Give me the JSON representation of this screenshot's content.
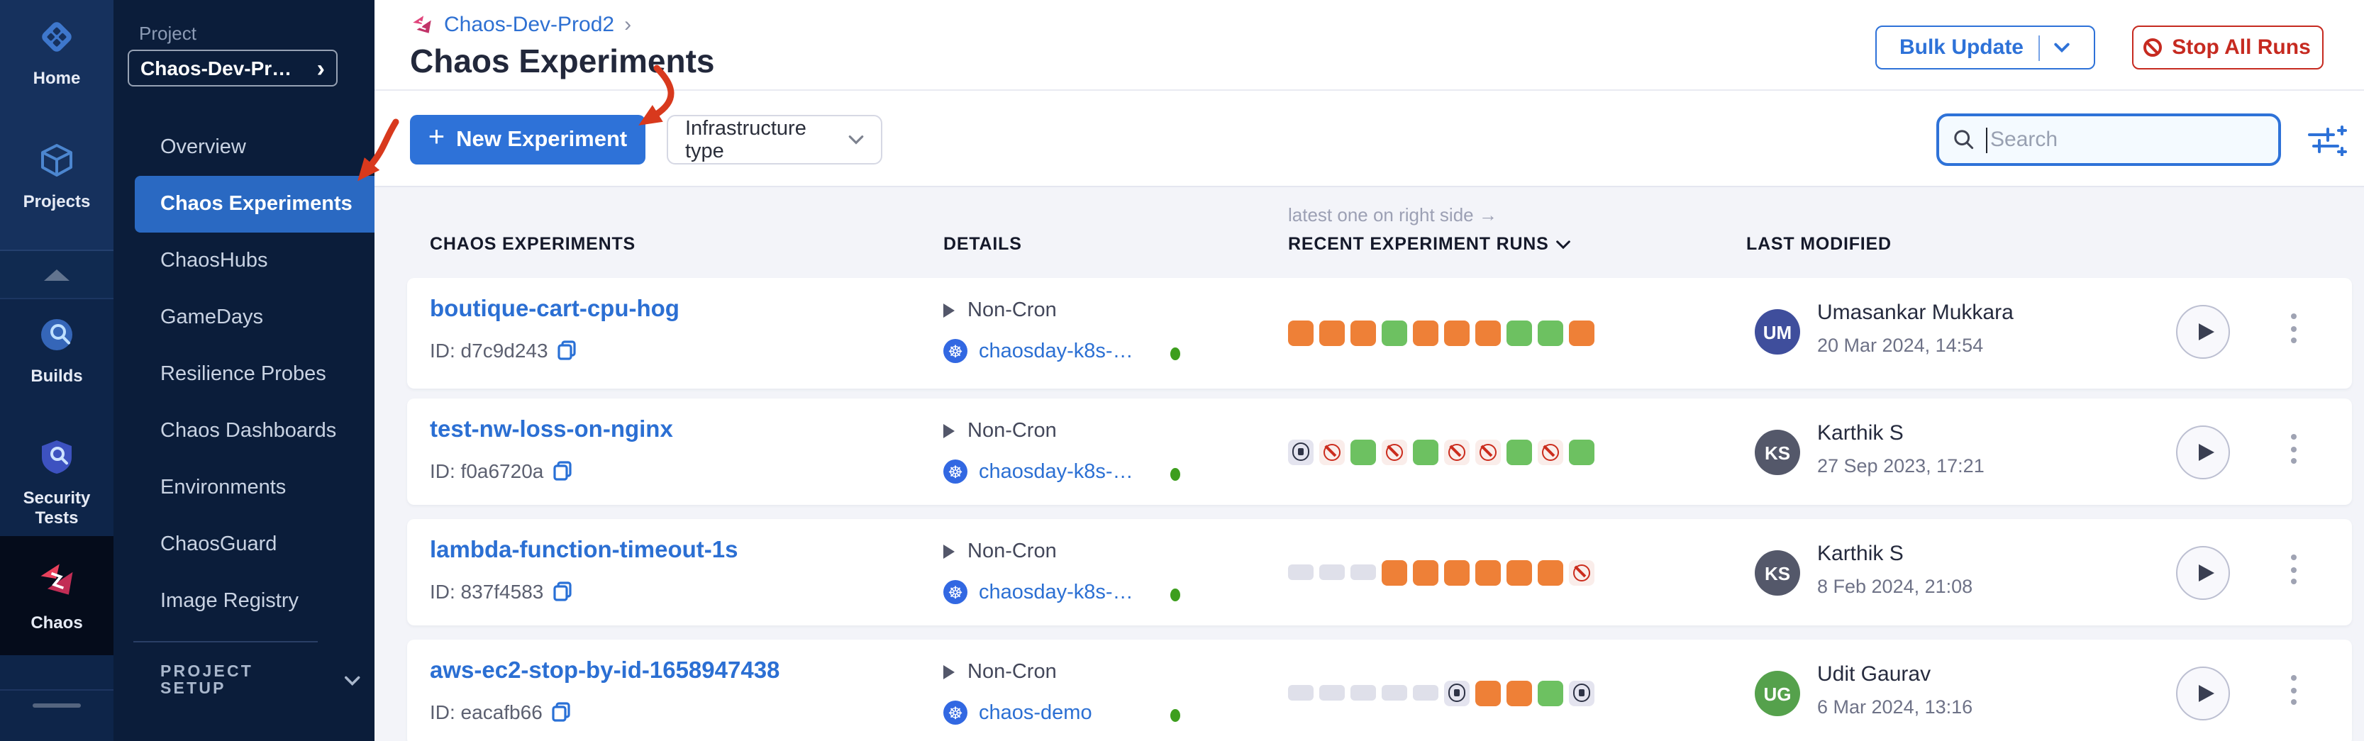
{
  "colors": {
    "primary_blue": "#2E72D8",
    "sidebar_active_blue": "#2A69C2",
    "link_blue": "#2B6FD3",
    "danger_red": "#C62A20",
    "annotation_red": "#D8391D",
    "run_orange": "#EE8037",
    "run_green": "#6DC161",
    "run_failed_icon": "#CB2C1D",
    "run_stopped_bg": "#E4E4EF",
    "run_empty": "#DFE0EA",
    "status_dot_green": "#3D9E1E"
  },
  "icons": {
    "plus": "+",
    "kubernetes": "☸",
    "breadcrumb_chevron": "›",
    "project_chevron": "›"
  },
  "rail": {
    "items": [
      {
        "label": "Home"
      },
      {
        "label": "Projects"
      },
      {
        "label": "Builds"
      },
      {
        "label": "Security Tests"
      },
      {
        "label": "Chaos",
        "active": true
      }
    ]
  },
  "sidebar": {
    "project_label": "Project",
    "project_name": "Chaos-Dev-Pr…",
    "items": [
      {
        "label": "Overview"
      },
      {
        "label": "Chaos Experiments",
        "active": true
      },
      {
        "label": "ChaosHubs"
      },
      {
        "label": "GameDays"
      },
      {
        "label": "Resilience Probes"
      },
      {
        "label": "Chaos Dashboards"
      },
      {
        "label": "Environments"
      },
      {
        "label": "ChaosGuard"
      },
      {
        "label": "Image Registry"
      }
    ],
    "setup_label": "PROJECT SETUP"
  },
  "header": {
    "breadcrumb": "Chaos-Dev-Prod2",
    "title": "Chaos Experiments",
    "bulk_update_label": "Bulk Update",
    "stop_all_label": "Stop All Runs"
  },
  "toolbar": {
    "new_experiment_label": "New Experiment",
    "infrastructure_filter_label": "Infrastructure type",
    "search_placeholder": "Search",
    "search_value": ""
  },
  "table": {
    "note": "latest one on right side →",
    "columns": [
      "CHAOS EXPERIMENTS",
      "DETAILS",
      "RECENT EXPERIMENT RUNS",
      "LAST MODIFIED"
    ]
  },
  "rows": [
    {
      "name": "boutique-cart-cpu-hog",
      "id": "ID: d7c9d243",
      "schedule": "Non-Cron",
      "infra": "chaosday-k8s-…",
      "runs": [
        "orange",
        "orange",
        "orange",
        "green",
        "orange",
        "orange",
        "orange",
        "green",
        "green",
        "orange"
      ],
      "user": {
        "initials": "UM",
        "name": "Umasankar Mukkara",
        "date": "20 Mar 2024, 14:54",
        "color": "#3F4E9C"
      }
    },
    {
      "name": "test-nw-loss-on-nginx",
      "id": "ID: f0a6720a",
      "schedule": "Non-Cron",
      "infra": "chaosday-k8s-…",
      "runs": [
        "stopped",
        "failed",
        "green",
        "failed",
        "green",
        "failed",
        "failed",
        "green",
        "failed",
        "green"
      ],
      "user": {
        "initials": "KS",
        "name": "Karthik S",
        "date": "27 Sep 2023, 17:21",
        "color": "#54586A"
      }
    },
    {
      "name": "lambda-function-timeout-1s",
      "id": "ID: 837f4583",
      "schedule": "Non-Cron",
      "infra": "chaosday-k8s-…",
      "runs": [
        "empty",
        "empty",
        "empty",
        "orange",
        "orange",
        "orange",
        "orange",
        "orange",
        "orange",
        "failed"
      ],
      "user": {
        "initials": "KS",
        "name": "Karthik S",
        "date": "8 Feb 2024, 21:08",
        "color": "#54586A"
      }
    },
    {
      "name": "aws-ec2-stop-by-id-1658947438",
      "id": "ID: eacafb66",
      "schedule": "Non-Cron",
      "infra": "chaos-demo",
      "runs": [
        "empty",
        "empty",
        "empty",
        "empty",
        "empty",
        "stopped",
        "orange",
        "orange",
        "green",
        "stopped"
      ],
      "user": {
        "initials": "UG",
        "name": "Udit Gaurav",
        "date": "6 Mar 2024, 13:16",
        "color": "#55A14C"
      }
    }
  ],
  "annotations": {
    "arrows": [
      {
        "color": "#D8391D",
        "points_to": "sidebar-item-chaos-experiments"
      },
      {
        "color": "#D8391D",
        "points_to": "new-experiment-button"
      }
    ]
  }
}
